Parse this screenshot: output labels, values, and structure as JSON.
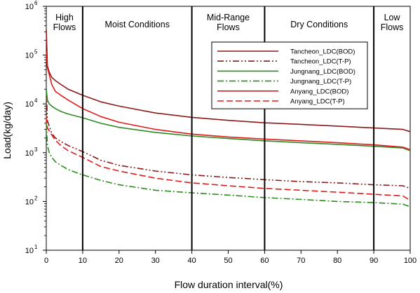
{
  "chart_data": {
    "type": "line",
    "xlabel": "Flow duration interval(%)",
    "ylabel": "Load(kg/day)",
    "xlim": [
      0,
      100
    ],
    "ylim": [
      10,
      1000000
    ],
    "y_scale": "log",
    "grid": false,
    "legend_position": "top-right",
    "x_ticks": [
      0,
      10,
      20,
      30,
      40,
      50,
      60,
      70,
      80,
      90,
      100
    ],
    "y_ticks": [
      {
        "value": 10,
        "base": "10",
        "exp": "1"
      },
      {
        "value": 100,
        "base": "10",
        "exp": "2"
      },
      {
        "value": 1000,
        "base": "10",
        "exp": "3"
      },
      {
        "value": 10000,
        "base": "10",
        "exp": "4"
      },
      {
        "value": 100000,
        "base": "10",
        "exp": "5"
      },
      {
        "value": 1000000,
        "base": "10",
        "exp": "6"
      }
    ],
    "zones": [
      {
        "label_lines": [
          "High",
          "Flows"
        ],
        "x_from": 0,
        "x_to": 10
      },
      {
        "label_lines": [
          "Moist Conditions"
        ],
        "x_from": 10,
        "x_to": 40
      },
      {
        "label_lines": [
          "Mid-Range",
          "Flows"
        ],
        "x_from": 40,
        "x_to": 60
      },
      {
        "label_lines": [
          "Dry Conditions"
        ],
        "x_from": 60,
        "x_to": 90
      },
      {
        "label_lines": [
          "Low",
          "Flows"
        ],
        "x_from": 90,
        "x_to": 100
      }
    ],
    "zone_boundaries": [
      10,
      40,
      60,
      90
    ],
    "series": [
      {
        "name": "Tancheon_LDC(BOD)",
        "color": "#8b1a1a",
        "dash": "solid",
        "x": [
          0,
          0.3,
          0.8,
          1.5,
          2.5,
          4,
          6,
          10,
          15,
          20,
          30,
          40,
          50,
          60,
          70,
          80,
          90,
          98,
          100
        ],
        "y": [
          330000,
          60000,
          45000,
          35000,
          30000,
          25000,
          20000,
          15000,
          11000,
          9000,
          6500,
          5300,
          4600,
          4100,
          3800,
          3500,
          3200,
          3000,
          2700
        ]
      },
      {
        "name": "Tancheon_LDC(T-P)",
        "color": "#8b1a1a",
        "dash": "dashdotdot",
        "x": [
          0,
          0.3,
          0.8,
          1.5,
          2.5,
          4,
          6,
          10,
          15,
          20,
          30,
          40,
          50,
          60,
          70,
          80,
          90,
          98,
          100
        ],
        "y": [
          20000,
          4500,
          3500,
          2500,
          2000,
          1700,
          1400,
          1050,
          700,
          550,
          420,
          350,
          310,
          280,
          255,
          240,
          220,
          210,
          185
        ]
      },
      {
        "name": "Jungnang_LDC(BOD)",
        "color": "#2e8b22",
        "dash": "solid",
        "x": [
          0,
          0.3,
          0.8,
          1.5,
          2.5,
          4,
          6,
          10,
          15,
          20,
          30,
          40,
          50,
          60,
          70,
          80,
          90,
          98,
          100
        ],
        "y": [
          20000,
          12000,
          10000,
          9000,
          8000,
          7000,
          6200,
          5200,
          4000,
          3300,
          2600,
          2200,
          1950,
          1750,
          1600,
          1480,
          1350,
          1250,
          1100
        ]
      },
      {
        "name": "Jungnang_LDC(T-P)",
        "color": "#2e8b22",
        "dash": "dashdot",
        "x": [
          0,
          0.3,
          0.8,
          1.5,
          2.5,
          4,
          6,
          10,
          15,
          20,
          30,
          40,
          50,
          60,
          70,
          80,
          90,
          98,
          100
        ],
        "y": [
          4000,
          1400,
          1000,
          800,
          650,
          550,
          450,
          350,
          270,
          220,
          170,
          150,
          135,
          120,
          110,
          100,
          95,
          88,
          78
        ]
      },
      {
        "name": "Anyang_LDC(BOD)",
        "color": "#e01b1b",
        "dash": "solid",
        "x": [
          0,
          0.3,
          0.8,
          1.5,
          2.5,
          4,
          6,
          10,
          15,
          20,
          30,
          40,
          50,
          60,
          70,
          80,
          90,
          98,
          100
        ],
        "y": [
          120000,
          55000,
          40000,
          25000,
          18000,
          15000,
          12000,
          8000,
          5500,
          4200,
          3000,
          2400,
          2100,
          1900,
          1750,
          1600,
          1450,
          1300,
          1150
        ]
      },
      {
        "name": "Anyang_LDC(T-P)",
        "color": "#e01b1b",
        "dash": "dashed",
        "x": [
          0,
          0.3,
          0.8,
          1.5,
          2.5,
          4,
          6,
          10,
          15,
          20,
          30,
          40,
          50,
          60,
          70,
          80,
          90,
          98,
          100
        ],
        "y": [
          5500,
          3200,
          2800,
          2300,
          1800,
          1400,
          1100,
          800,
          520,
          420,
          300,
          240,
          210,
          185,
          170,
          155,
          140,
          130,
          105
        ]
      }
    ]
  }
}
